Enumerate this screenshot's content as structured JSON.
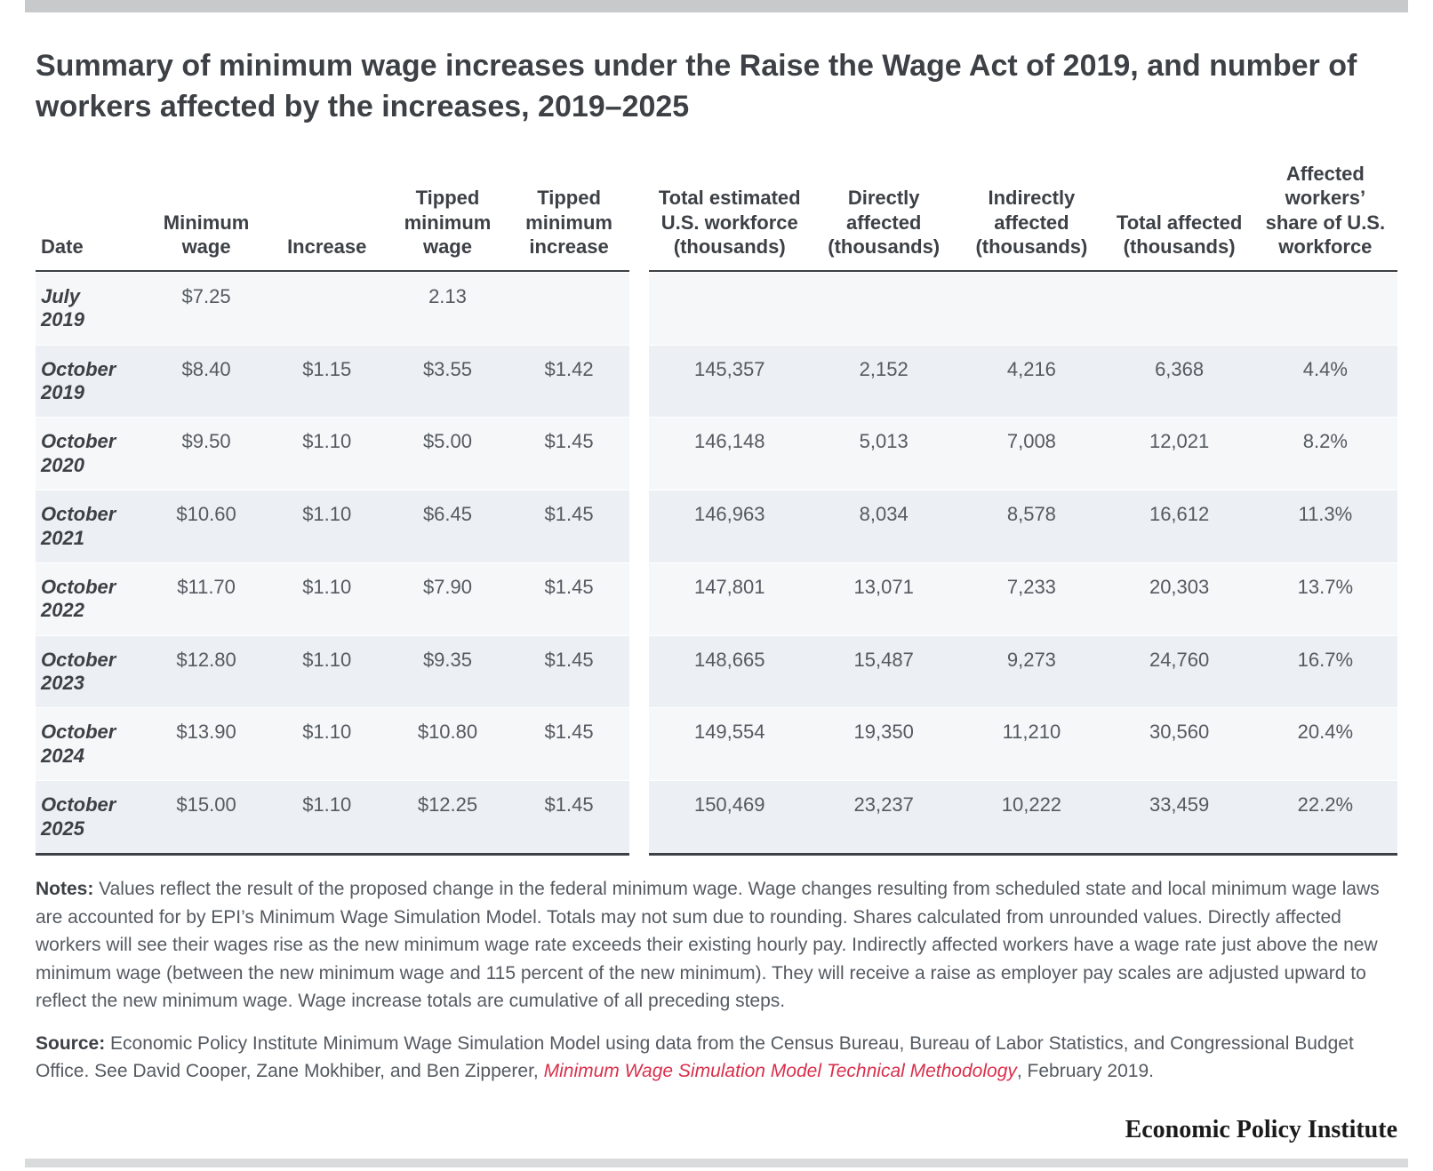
{
  "title": "Summary of minimum wage increases under the Raise the Wage Act of 2019, and number of workers affected by the increases, 2019–2025",
  "columns": [
    "Date",
    "Minimum wage",
    "Increase",
    "Tipped minimum wage",
    "Tipped minimum increase",
    "Total estimated U.S. workforce (thousands)",
    "Directly affected (thousands)",
    "Indirectly affected (thousands)",
    "Total affected (thousands)",
    "Affected workers’ share of U.S. workforce"
  ],
  "rows": [
    {
      "date_l1": "July",
      "date_l2": "2019",
      "min": "$7.25",
      "inc": "",
      "tmin": "2.13",
      "tinc": "",
      "wf": "",
      "dir": "",
      "ind": "",
      "tot": "",
      "share": ""
    },
    {
      "date_l1": "October",
      "date_l2": "2019",
      "min": "$8.40",
      "inc": "$1.15",
      "tmin": "$3.55",
      "tinc": "$1.42",
      "wf": "145,357",
      "dir": "2,152",
      "ind": "4,216",
      "tot": "6,368",
      "share": "4.4%"
    },
    {
      "date_l1": "October",
      "date_l2": "2020",
      "min": "$9.50",
      "inc": "$1.10",
      "tmin": "$5.00",
      "tinc": "$1.45",
      "wf": "146,148",
      "dir": "5,013",
      "ind": "7,008",
      "tot": "12,021",
      "share": "8.2%"
    },
    {
      "date_l1": "October",
      "date_l2": "2021",
      "min": "$10.60",
      "inc": "$1.10",
      "tmin": "$6.45",
      "tinc": "$1.45",
      "wf": "146,963",
      "dir": "8,034",
      "ind": "8,578",
      "tot": "16,612",
      "share": "11.3%"
    },
    {
      "date_l1": "October",
      "date_l2": "2022",
      "min": "$11.70",
      "inc": "$1.10",
      "tmin": "$7.90",
      "tinc": "$1.45",
      "wf": "147,801",
      "dir": "13,071",
      "ind": "7,233",
      "tot": "20,303",
      "share": "13.7%"
    },
    {
      "date_l1": "October",
      "date_l2": "2023",
      "min": "$12.80",
      "inc": "$1.10",
      "tmin": "$9.35",
      "tinc": "$1.45",
      "wf": "148,665",
      "dir": "15,487",
      "ind": "9,273",
      "tot": "24,760",
      "share": "16.7%"
    },
    {
      "date_l1": "October",
      "date_l2": "2024",
      "min": "$13.90",
      "inc": "$1.10",
      "tmin": "$10.80",
      "tinc": "$1.45",
      "wf": "149,554",
      "dir": "19,350",
      "ind": "11,210",
      "tot": "30,560",
      "share": "20.4%"
    },
    {
      "date_l1": "October",
      "date_l2": "2025",
      "min": "$15.00",
      "inc": "$1.10",
      "tmin": "$12.25",
      "tinc": "$1.45",
      "wf": "150,469",
      "dir": "23,237",
      "ind": "10,222",
      "tot": "33,459",
      "share": "22.2%"
    }
  ],
  "notes_label": "Notes:",
  "notes_text": " Values reflect the result of the proposed change in the federal minimum wage. Wage changes resulting from scheduled state and local minimum wage laws are accounted for by EPI’s Minimum Wage Simulation Model. Totals may not sum due to rounding. Shares calculated from unrounded values. Directly affected workers will see their wages rise as the new minimum wage rate exceeds their existing hourly pay. Indirectly affected workers have a wage rate just above the new minimum wage (between the new minimum wage and 115 percent of the new minimum). They will receive a raise as employer pay scales are adjusted upward to reflect the new minimum wage. Wage increase totals are cumulative of all preceding steps.",
  "source_label": "Source:",
  "source_text_pre": " Economic Policy Institute Minimum Wage Simulation Model using data from the Census Bureau, Bureau of Labor Statistics, and Congressional Budget Office. See David Cooper, Zane Mokhiber, and Ben Zipperer, ",
  "source_link_text": "Minimum Wage Simulation Model Technical Methodology",
  "source_text_post": ", February 2019.",
  "brand": "Economic Policy Institute",
  "colors": {
    "title": "#3d4045",
    "body": "#555a60",
    "row_even_bg": "#ecf0f4",
    "row_odd_bg": "#f5f7f9",
    "link": "#d9304c",
    "topbar": "#c8c9cb",
    "botbar": "#d9dadb",
    "rule": "#3d4045"
  },
  "fontsizes": {
    "title": 34,
    "table": 22,
    "notes": 21,
    "brand": 28
  }
}
